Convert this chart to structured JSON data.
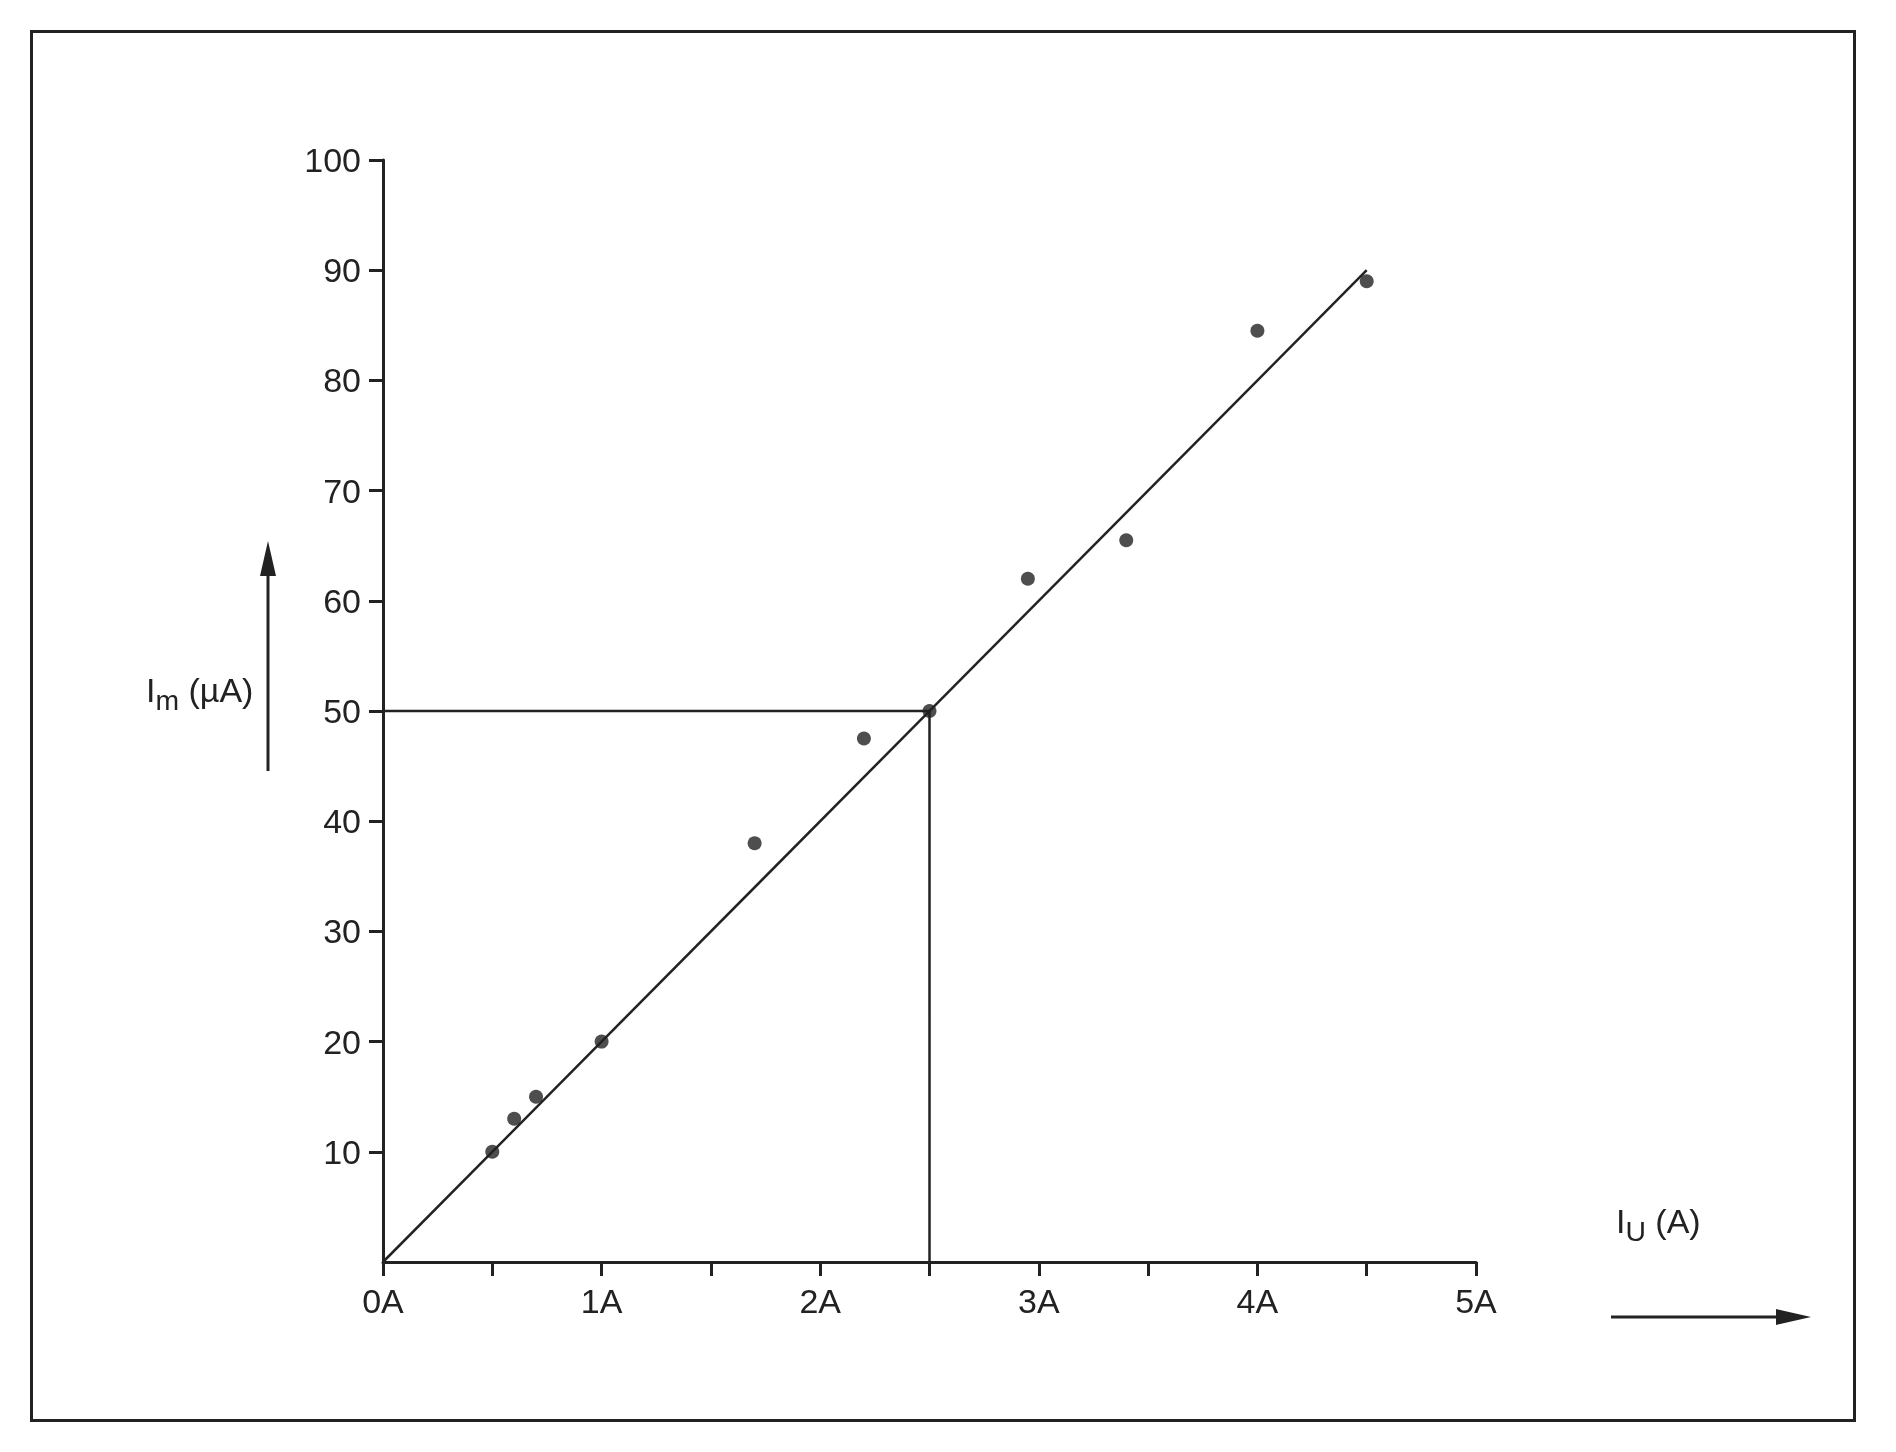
{
  "chart_data": {
    "type": "scatter",
    "xlabel": "I$_{U}$ (A)",
    "ylabel": "I$_{m}$ (µA)",
    "xlim": [
      0,
      5
    ],
    "ylim": [
      0,
      100
    ],
    "xticks": [
      {
        "value": 0,
        "label": "0A"
      },
      {
        "value": 0.5,
        "label": null
      },
      {
        "value": 1,
        "label": "1A"
      },
      {
        "value": 1.5,
        "label": null
      },
      {
        "value": 2,
        "label": "2A"
      },
      {
        "value": 2.5,
        "label": null
      },
      {
        "value": 3,
        "label": "3A"
      },
      {
        "value": 3.5,
        "label": null
      },
      {
        "value": 4,
        "label": "4A"
      },
      {
        "value": 4.5,
        "label": null
      },
      {
        "value": 5,
        "label": "5A"
      }
    ],
    "yticks": [
      10,
      20,
      30,
      40,
      50,
      60,
      70,
      80,
      90,
      100
    ],
    "grid": false,
    "marker": "circle",
    "series": [
      {
        "color": "#222222",
        "x": [
          0.5,
          0.6,
          0.7,
          1.0,
          1.7,
          2.2,
          2.5,
          2.95,
          3.4,
          4.0,
          4.5
        ],
        "values": [
          10,
          13,
          15,
          20,
          38,
          47.5,
          50,
          62,
          65.5,
          84.5,
          89
        ]
      },
      {
        "type": "line",
        "color": "#222222",
        "marker": "none",
        "line_style": "solid",
        "x": [
          0,
          4.5
        ],
        "values": [
          0,
          90
        ]
      },
      {
        "type": "line",
        "color": "#222222",
        "marker": "none",
        "line_style": "solid",
        "x": [
          0,
          2.5,
          2.5
        ],
        "values": [
          50,
          50,
          0
        ]
      }
    ]
  }
}
